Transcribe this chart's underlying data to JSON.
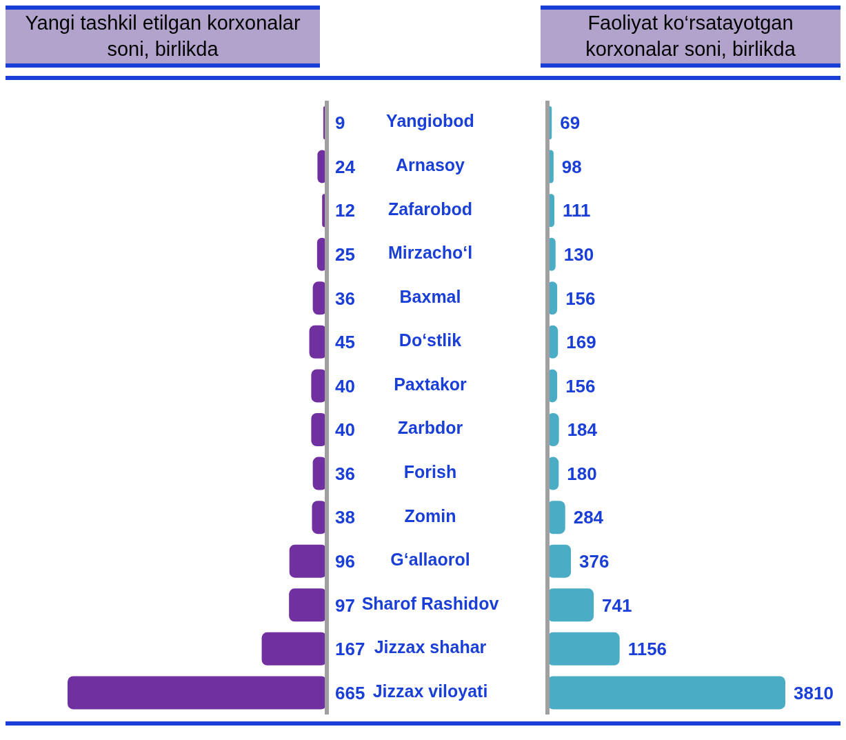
{
  "chart_data": [
    {
      "type": "bar",
      "orientation": "horizontal",
      "title": "Yangi tashkil etilgan korxonalar soni, birlikda",
      "categories": [
        "Yangiobod",
        "Arnasoy",
        "Zafarobod",
        "Mirzacho‘l",
        "Baxmal",
        "Do‘stlik",
        "Paxtakor",
        "Zarbdor",
        "Forish",
        "Zomin",
        "G‘allaorol",
        "Sharof Rashidov",
        "Jizzax shahar",
        "Jizzax viloyati"
      ],
      "series": [
        {
          "color": "#7030a0",
          "values": [
            9,
            24,
            12,
            25,
            36,
            45,
            40,
            40,
            36,
            38,
            96,
            97,
            167,
            665
          ]
        }
      ],
      "tick_labels": "y",
      "data_labels": true
    },
    {
      "type": "bar",
      "orientation": "horizontal",
      "title": "Faoliyat ko‘rsatayotgan korxonalar soni, birlikda",
      "series": [
        {
          "color": "#4bacc6",
          "values": [
            69,
            98,
            111,
            130,
            156,
            169,
            156,
            184,
            180,
            284,
            376,
            741,
            1156,
            3810
          ]
        }
      ],
      "tick_labels": false,
      "data_labels": true
    }
  ]
}
